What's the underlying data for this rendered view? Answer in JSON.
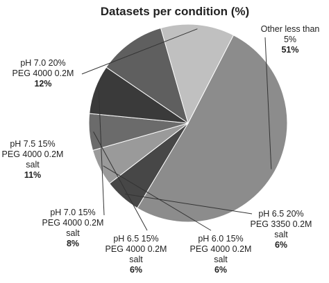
{
  "chart_data": {
    "type": "pie",
    "title": "Datasets per condition (%)",
    "slices": [
      {
        "label": [
          "Other less than",
          "5%"
        ],
        "value": 51,
        "value_label": "51%",
        "color": "#8c8c8c"
      },
      {
        "label": [
          "pH 6.5 20%",
          "PEG 3350 0.2M",
          "salt"
        ],
        "value": 6,
        "value_label": "6%",
        "color": "#474747"
      },
      {
        "label": [
          "pH 6.0 15%",
          "PEG 4000 0.2M",
          "salt"
        ],
        "value": 6,
        "value_label": "6%",
        "color": "#9a9a9a"
      },
      {
        "label": [
          "pH 6.5 15%",
          "PEG 4000 0.2M",
          "salt"
        ],
        "value": 6,
        "value_label": "6%",
        "color": "#6b6b6b"
      },
      {
        "label": [
          "pH 7.0 15%",
          "PEG 4000 0.2M",
          "salt"
        ],
        "value": 8,
        "value_label": "8%",
        "color": "#3a3a3a"
      },
      {
        "label": [
          "pH 7.5 15%",
          "PEG 4000 0.2M",
          "salt"
        ],
        "value": 11,
        "value_label": "11%",
        "color": "#5f5f5f"
      },
      {
        "label": [
          "pH 7.0 20%",
          "PEG 4000 0.2M"
        ],
        "value": 12,
        "value_label": "12%",
        "color": "#c0c0c0"
      }
    ]
  }
}
